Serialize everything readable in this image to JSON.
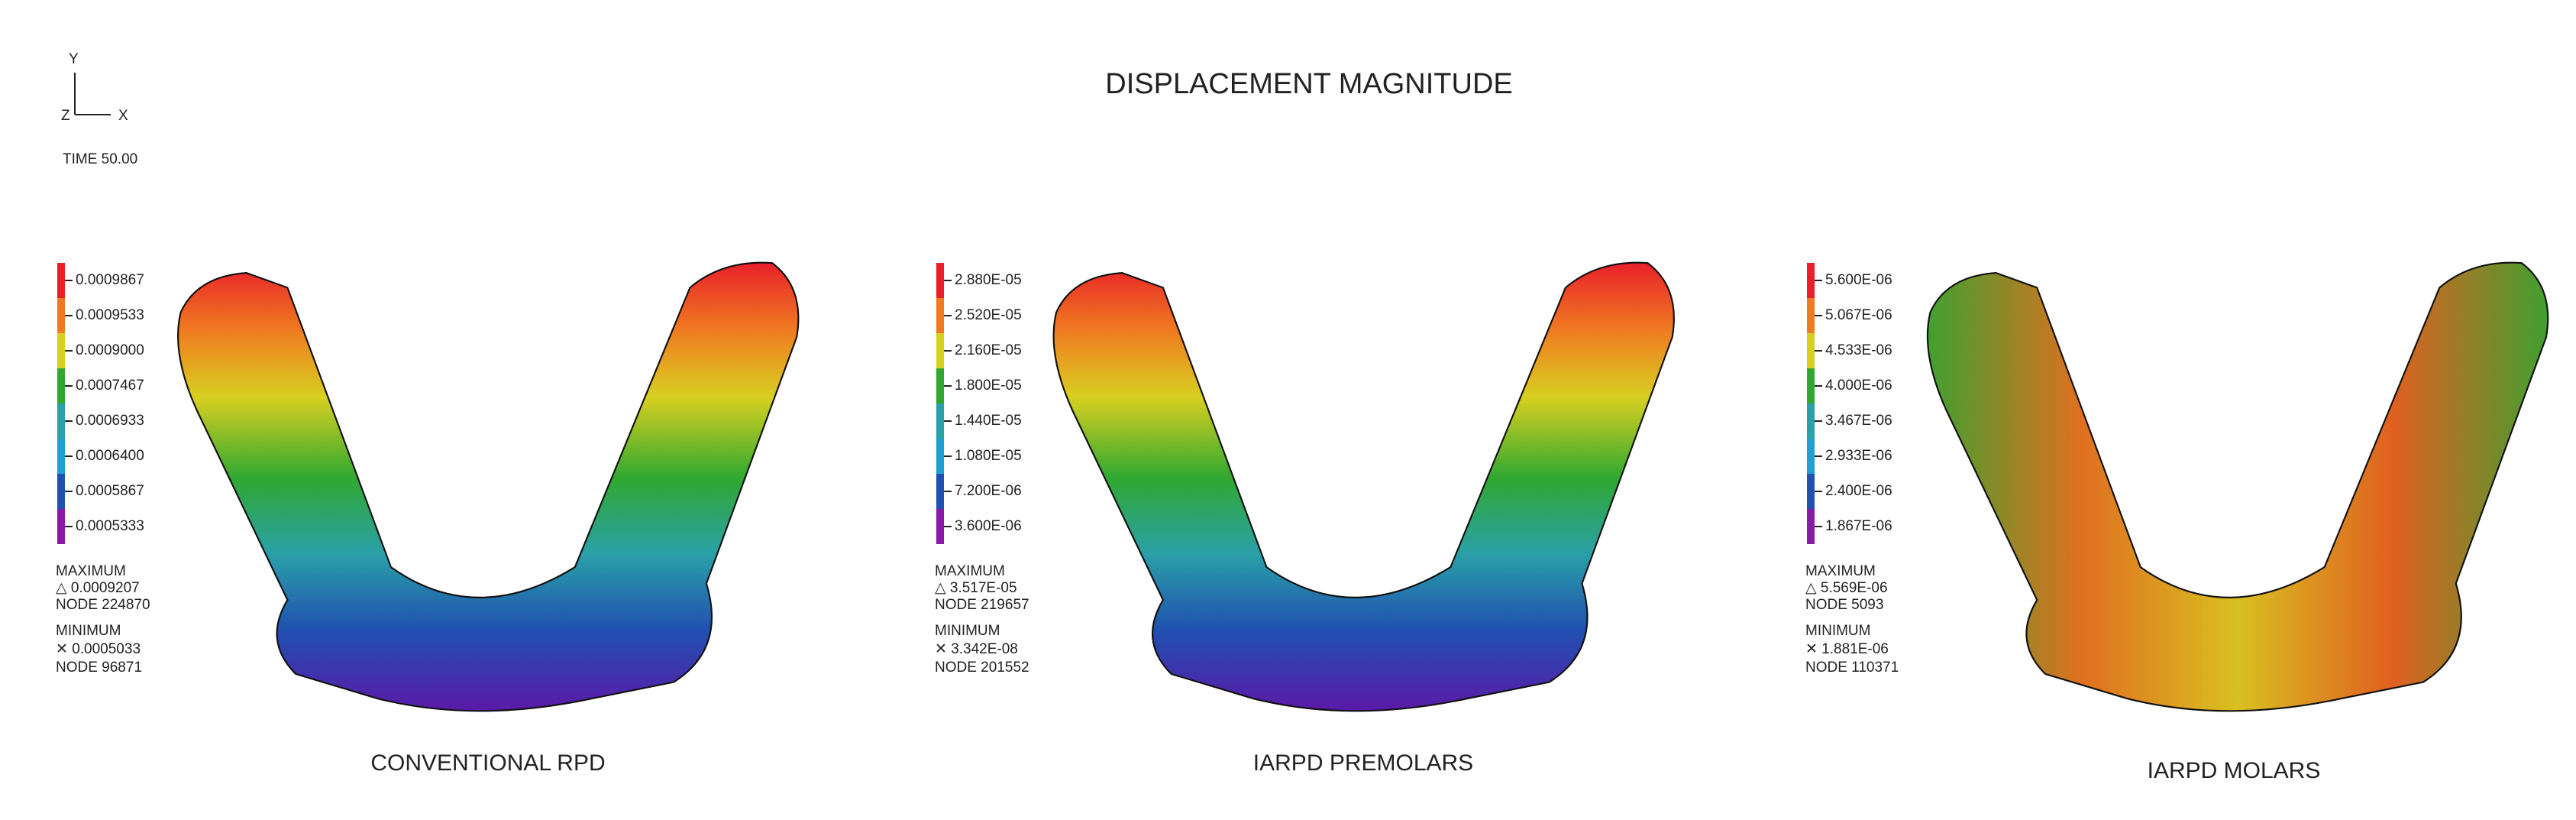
{
  "title": "DISPLACEMENT MAGNITUDE",
  "triad": {
    "y": "Y",
    "z": "Z",
    "x": "X"
  },
  "time": "TIME 50.00",
  "panels": [
    {
      "legend": [
        "0.0009867",
        "0.0009533",
        "0.0009000",
        "0.0007467",
        "0.0006933",
        "0.0006400",
        "0.0005867",
        "0.0005333"
      ],
      "maximum": {
        "label": "MAXIMUM",
        "value": "△ 0.0009207",
        "node": "NODE 224870"
      },
      "minimum": {
        "label": "MINIMUM",
        "value": "✕ 0.0005033",
        "node": "NODE 96871"
      },
      "caption": "CONVENTIONAL RPD"
    },
    {
      "legend": [
        "2.880E-05",
        "2.520E-05",
        "2.160E-05",
        "1.800E-05",
        "1.440E-05",
        "1.080E-05",
        "7.200E-06",
        "3.600E-06"
      ],
      "maximum": {
        "label": "MAXIMUM",
        "value": "△ 3.517E-05",
        "node": "NODE 219657"
      },
      "minimum": {
        "label": "MINIMUM",
        "value": "✕ 3.342E-08",
        "node": "NODE 201552"
      },
      "caption": "IARPD PREMOLARS"
    },
    {
      "legend": [
        "5.600E-06",
        "5.067E-06",
        "4.533E-06",
        "4.000E-06",
        "3.467E-06",
        "2.933E-06",
        "2.400E-06",
        "1.867E-06"
      ],
      "maximum": {
        "label": "MAXIMUM",
        "value": "△ 5.569E-06",
        "node": "NODE 5093"
      },
      "minimum": {
        "label": "MINIMUM",
        "value": "✕ 1.881E-06",
        "node": "NODE 110371"
      },
      "caption": "IARPD MOLARS"
    }
  ]
}
